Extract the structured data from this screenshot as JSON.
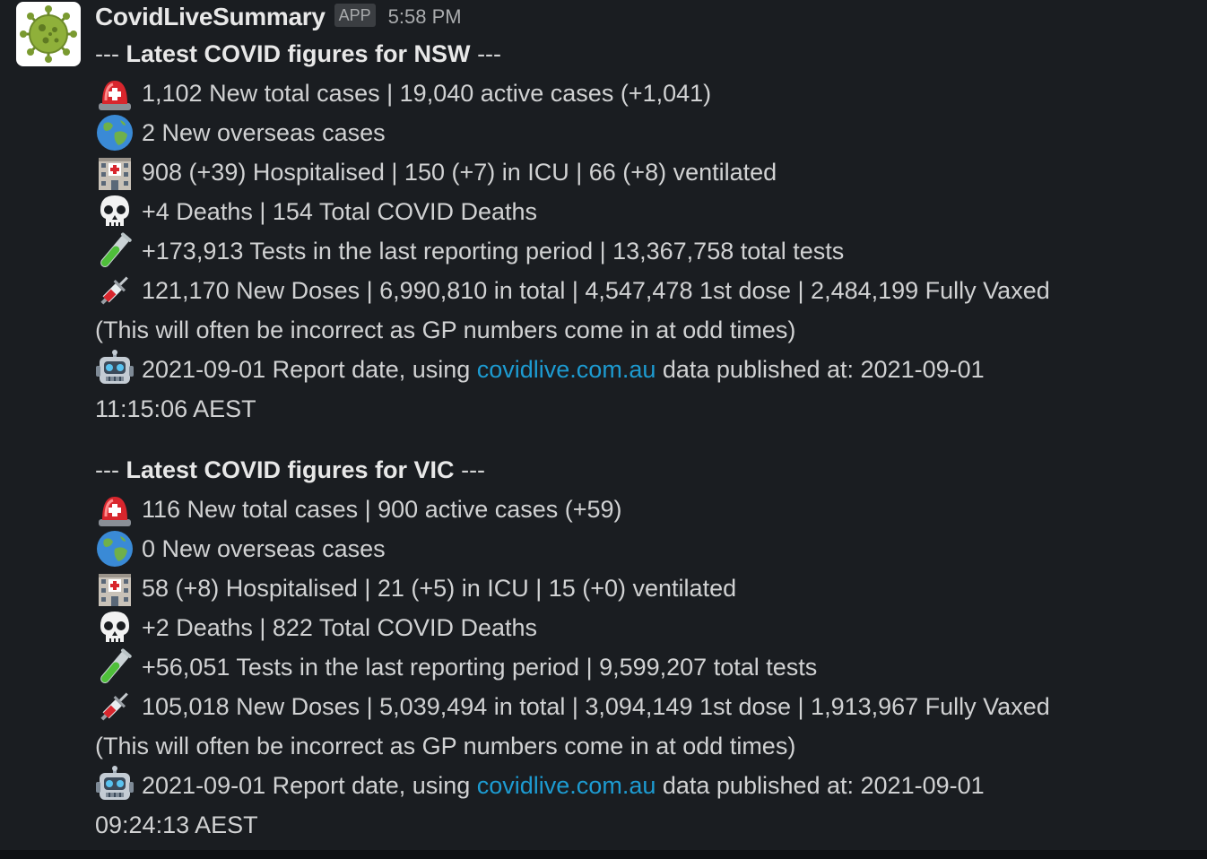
{
  "message": {
    "sender": "CovidLiveSummary",
    "badge": "APP",
    "timestamp": "5:58 PM",
    "avatar_icon": "virus-icon",
    "link_color": "#1d9bd1",
    "sections": [
      {
        "heading_prefix": "---",
        "heading": "Latest COVID figures for NSW",
        "heading_suffix": "---",
        "cases": "1,102 New total cases | 19,040 active cases (+1,041)",
        "overseas": "2 New overseas cases",
        "hospital": "908 (+39) Hospitalised | 150 (+7) in ICU | 66 (+8) ventilated",
        "deaths": "+4 Deaths | 154 Total COVID Deaths",
        "tests": "+173,913 Tests in the last reporting period | 13,367,758 total tests",
        "doses": "121,170 New Doses | 6,990,810 in total | 4,547,478 1st dose | 2,484,199 Fully Vaxed",
        "note": "(This will often be incorrect as GP numbers come in at odd times)",
        "report_prefix": "2021-09-01 Report date, using ",
        "report_link": "covidlive.com.au",
        "report_suffix": " data published at: 2021-09-01",
        "report_time": "11:15:06 AEST"
      },
      {
        "heading_prefix": "---",
        "heading": "Latest COVID figures for VIC",
        "heading_suffix": "---",
        "cases": "116 New total cases | 900 active cases (+59)",
        "overseas": "0 New overseas cases",
        "hospital": "58 (+8) Hospitalised | 21 (+5) in ICU | 15 (+0) ventilated",
        "deaths": "+2 Deaths | 822 Total COVID Deaths",
        "tests": "+56,051 Tests in the last reporting period | 9,599,207 total tests",
        "doses": "105,018 New Doses | 5,039,494 in total | 3,094,149 1st dose | 1,913,967 Fully Vaxed",
        "note": "(This will often be incorrect as GP numbers come in at odd times)",
        "report_prefix": "2021-09-01 Report date, using ",
        "report_link": "covidlive.com.au",
        "report_suffix": " data published at: 2021-09-01",
        "report_time": "09:24:13 AEST"
      }
    ]
  }
}
